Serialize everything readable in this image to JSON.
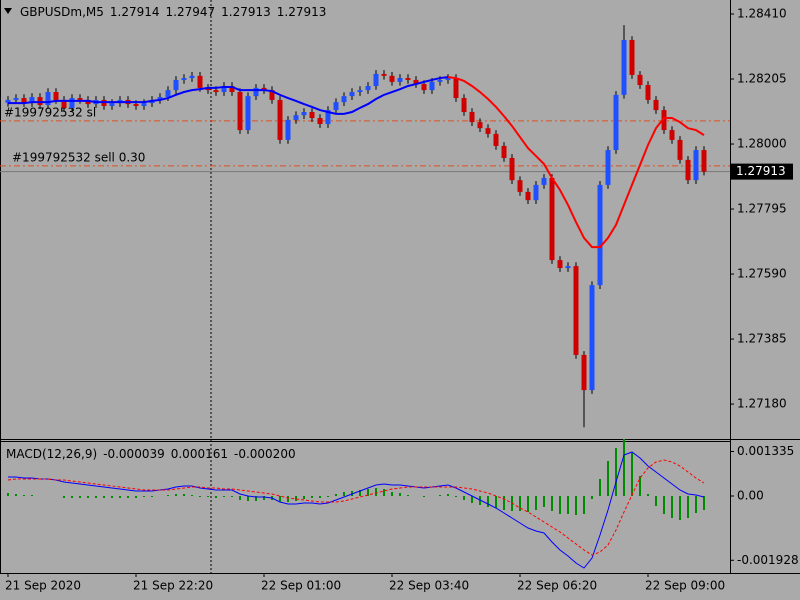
{
  "chart_data": [
    {
      "type": "candlestick",
      "title": "GBPUSDm,M5",
      "header_values": [
        1.27914,
        1.27947,
        1.27913,
        1.27913
      ],
      "categories": [
        "21 Sep 2020",
        null,
        null,
        null,
        null,
        null,
        null,
        null,
        null,
        null,
        null,
        null,
        null,
        null,
        null,
        null,
        "21 Sep 22:20",
        null,
        null,
        null,
        null,
        null,
        null,
        null,
        null,
        null,
        null,
        null,
        null,
        null,
        null,
        null,
        "22 Sep 01:00",
        null,
        null,
        null,
        null,
        null,
        null,
        null,
        null,
        null,
        null,
        null,
        null,
        null,
        null,
        null,
        "22 Sep 03:40",
        null,
        null,
        null,
        null,
        null,
        null,
        null,
        null,
        null,
        null,
        null,
        null,
        null,
        null,
        null,
        "22 Sep 06:20",
        null,
        null,
        null,
        null,
        null,
        null,
        null,
        null,
        null,
        null,
        null,
        null,
        null,
        null,
        null,
        "22 Sep 09:00",
        null,
        null,
        null,
        null,
        null,
        null,
        null
      ],
      "open": [
        1.2813,
        1.28139,
        1.28145,
        1.28129,
        1.28148,
        1.28123,
        1.28164,
        1.28139,
        1.28114,
        1.28145,
        1.28139,
        1.28126,
        1.28139,
        1.2812,
        1.28129,
        1.28139,
        1.28126,
        1.2812,
        1.28129,
        1.28139,
        1.28148,
        1.2817,
        1.28202,
        1.28208,
        1.28215,
        1.28177,
        1.2817,
        1.28164,
        1.28183,
        1.28164,
        1.28044,
        1.28151,
        1.28177,
        1.2817,
        1.28139,
        1.28013,
        1.28076,
        1.28091,
        1.28101,
        1.28082,
        1.28063,
        1.28107,
        1.28132,
        1.28151,
        1.28164,
        1.2817,
        1.28183,
        1.28221,
        1.28215,
        1.28196,
        1.28208,
        1.28202,
        1.28189,
        1.2817,
        1.28196,
        1.28202,
        1.28208,
        1.28145,
        1.28101,
        1.28069,
        1.2805,
        1.28032,
        1.27994,
        1.27956,
        1.27886,
        1.27849,
        1.27823,
        1.27871,
        1.27893,
        1.27634,
        1.27609,
        1.27615,
        1.27335,
        1.27224,
        1.27555,
        1.27871,
        1.27981,
        1.28155,
        1.28328,
        1.28218,
        1.28186,
        1.28139,
        1.28107,
        1.28044,
        1.28013,
        1.2795,
        1.27886,
        1.27981
      ],
      "high": [
        1.28151,
        1.28157,
        1.28157,
        1.2816,
        1.2816,
        1.28176,
        1.28176,
        1.28151,
        1.28157,
        1.28157,
        1.28151,
        1.28151,
        1.28151,
        1.28141,
        1.28151,
        1.28151,
        1.28138,
        1.28141,
        1.28151,
        1.2816,
        1.28182,
        1.28214,
        1.2822,
        1.28227,
        1.28227,
        1.28189,
        1.28182,
        1.28195,
        1.28195,
        1.28176,
        1.28163,
        1.28189,
        1.28189,
        1.28182,
        1.28151,
        1.28088,
        1.28103,
        1.28113,
        1.28113,
        1.28094,
        1.28119,
        1.28144,
        1.28163,
        1.28176,
        1.28182,
        1.28195,
        1.28233,
        1.28233,
        1.28227,
        1.2822,
        1.2822,
        1.28214,
        1.28201,
        1.28208,
        1.28214,
        1.2822,
        1.2822,
        1.28157,
        1.28113,
        1.28081,
        1.28062,
        1.28044,
        1.28006,
        1.27968,
        1.27898,
        1.27861,
        1.27883,
        1.27905,
        1.27905,
        1.27646,
        1.27627,
        1.27627,
        1.27347,
        1.27567,
        1.27883,
        1.27993,
        1.28167,
        1.28375,
        1.2834,
        1.2823,
        1.28198,
        1.28151,
        1.28119,
        1.28056,
        1.28025,
        1.27962,
        1.27993,
        1.27993
      ],
      "low": [
        1.28118,
        1.28127,
        1.28117,
        1.28117,
        1.28111,
        1.28111,
        1.28127,
        1.28102,
        1.28102,
        1.28127,
        1.28114,
        1.28114,
        1.28108,
        1.28108,
        1.28117,
        1.28114,
        1.28108,
        1.28108,
        1.28117,
        1.28127,
        1.28136,
        1.28158,
        1.2819,
        1.28196,
        1.28165,
        1.28158,
        1.28152,
        1.28152,
        1.28152,
        1.28032,
        1.28032,
        1.28139,
        1.28158,
        1.28127,
        1.28001,
        1.28001,
        1.28064,
        1.28079,
        1.2807,
        1.28051,
        1.28051,
        1.28095,
        1.2812,
        1.28139,
        1.28152,
        1.28158,
        1.28171,
        1.28203,
        1.28184,
        1.28184,
        1.2819,
        1.28177,
        1.28158,
        1.28158,
        1.28184,
        1.2819,
        1.28133,
        1.28089,
        1.28057,
        1.28038,
        1.2802,
        1.27982,
        1.27944,
        1.27874,
        1.27837,
        1.27811,
        1.27811,
        1.27859,
        1.27622,
        1.27597,
        1.27597,
        1.27323,
        1.27107,
        1.27212,
        1.27543,
        1.27859,
        1.27969,
        1.28143,
        1.28206,
        1.28174,
        1.28127,
        1.28095,
        1.28032,
        1.28001,
        1.27938,
        1.27874,
        1.27874,
        1.27901
      ],
      "close": [
        1.28139,
        1.28145,
        1.28129,
        1.28148,
        1.28123,
        1.28164,
        1.28139,
        1.28114,
        1.28145,
        1.28139,
        1.28126,
        1.28139,
        1.2812,
        1.28129,
        1.28139,
        1.28126,
        1.2812,
        1.28129,
        1.28139,
        1.28148,
        1.2817,
        1.28202,
        1.28208,
        1.28215,
        1.28177,
        1.2817,
        1.28164,
        1.28183,
        1.28164,
        1.28044,
        1.28151,
        1.28177,
        1.2817,
        1.28139,
        1.28013,
        1.28076,
        1.28091,
        1.28101,
        1.28082,
        1.28063,
        1.28107,
        1.28132,
        1.28151,
        1.28164,
        1.2817,
        1.28183,
        1.28221,
        1.28215,
        1.28196,
        1.28208,
        1.28202,
        1.28189,
        1.2817,
        1.28196,
        1.28202,
        1.28208,
        1.28145,
        1.28101,
        1.28069,
        1.2805,
        1.28032,
        1.27994,
        1.27956,
        1.27886,
        1.27849,
        1.27823,
        1.27871,
        1.27893,
        1.27634,
        1.27609,
        1.27615,
        1.27335,
        1.27224,
        1.27555,
        1.27871,
        1.27981,
        1.28155,
        1.28328,
        1.28218,
        1.28186,
        1.28139,
        1.28107,
        1.28044,
        1.28013,
        1.2795,
        1.27886,
        1.27981,
        1.27913
      ],
      "up_color": "#1f4fff",
      "down_color": "#d00000",
      "ma": {
        "up_color": "#0000ff",
        "down_color": "#ff0000",
        "values": [
          1.28129,
          1.28129,
          1.28129,
          1.28132,
          1.28132,
          1.28132,
          1.28136,
          1.28136,
          1.28136,
          1.28136,
          1.28136,
          1.28132,
          1.28132,
          1.28132,
          1.28132,
          1.28132,
          1.28132,
          1.28132,
          1.28136,
          1.28139,
          1.28145,
          1.28155,
          1.28164,
          1.2817,
          1.28173,
          1.28177,
          1.28177,
          1.2818,
          1.2818,
          1.2817,
          1.2817,
          1.2817,
          1.2817,
          1.28167,
          1.28155,
          1.28145,
          1.28136,
          1.28126,
          1.28117,
          1.28107,
          1.28101,
          1.28095,
          1.28095,
          1.28101,
          1.28114,
          1.28126,
          1.28142,
          1.28155,
          1.28164,
          1.28173,
          1.28183,
          1.28189,
          1.28196,
          1.28202,
          1.28208,
          1.28211,
          1.28208,
          1.28199,
          1.28183,
          1.28164,
          1.28142,
          1.28117,
          1.28088,
          1.28057,
          1.28022,
          1.27987,
          1.27962,
          1.27937,
          1.27893,
          1.27855,
          1.27808,
          1.27754,
          1.27704,
          1.27675,
          1.27675,
          1.27704,
          1.27745,
          1.27808,
          1.27871,
          1.27934,
          1.27997,
          1.2805,
          1.28082,
          1.28082,
          1.28069,
          1.2805,
          1.28044,
          1.28028
        ]
      },
      "levels": [
        {
          "label": "#199792532 sl",
          "value": 1.28073,
          "color": "#e05020"
        },
        {
          "label": "#199792532 sell 0.30",
          "value": 1.27931,
          "color": "#e05020"
        }
      ],
      "last_price": 1.27913,
      "ylim": [
        1.27073,
        1.28451
      ],
      "yticks": [
        {
          "value": 1.2841,
          "label": "1.28410"
        },
        1.28205,
        {
          "value": 1.28,
          "label": "1.28000"
        },
        1.27795,
        {
          "value": 1.2759,
          "label": "1.27590"
        },
        1.27385,
        {
          "value": 1.2718,
          "label": "1.27180"
        }
      ]
    },
    {
      "type": "macd",
      "title": "MACD(12,26,9)",
      "header_values": [
        -3.9e-05,
        0.000161,
        {
          "value": -0.0002,
          "label": "-0.000200"
        }
      ],
      "series": [
        {
          "style": "histogram",
          "color": "#008c00",
          "values": [
            9e-05,
            6e-05,
            3e-05,
            3e-05,
            0,
            0,
            0,
            -6e-05,
            -6e-05,
            -6e-05,
            -6e-05,
            -6e-05,
            -6e-05,
            -6e-05,
            -6e-05,
            -6e-05,
            -6e-05,
            -3e-05,
            -3e-05,
            0,
            3e-05,
            6e-05,
            6e-05,
            3e-05,
            -3e-05,
            -3e-05,
            -6e-05,
            -3e-05,
            -3e-05,
            -0.00012,
            -0.00015,
            -0.00015,
            -0.00012,
            -0.00012,
            -0.00018,
            -0.00018,
            -0.00015,
            -9e-05,
            -6e-05,
            -6e-05,
            -3e-05,
            6e-05,
            0.00012,
            0.00015,
            0.00018,
            0.00021,
            0.00024,
            0.00021,
            0.00012,
            9e-05,
            3e-05,
            0,
            -3e-05,
            0,
            3e-05,
            6e-05,
            -3e-05,
            -0.00012,
            -0.00021,
            -0.00027,
            -0.00033,
            -0.00036,
            -0.00042,
            -0.00045,
            -0.00045,
            -0.00048,
            -0.00042,
            -0.00033,
            -0.00045,
            -0.00054,
            -0.00054,
            -0.00057,
            -0.00054,
            -9e-05,
            0.00051,
            0.00105,
            0.00144,
            0.00171,
            0.00129,
            0.0006,
            6e-05,
            -0.0003,
            -0.00054,
            -0.00066,
            -0.00072,
            -0.00066,
            -0.00051,
            -0.00042
          ]
        },
        {
          "style": "solid",
          "color": "#0000ff",
          "values": [
            0.00057,
            0.00057,
            0.00054,
            0.00054,
            0.00051,
            0.00051,
            0.00048,
            0.00042,
            0.00039,
            0.00036,
            0.00033,
            0.0003,
            0.00027,
            0.00024,
            0.00021,
            0.00018,
            0.00015,
            0.00015,
            0.00015,
            0.00018,
            0.00021,
            0.00027,
            0.0003,
            0.0003,
            0.00024,
            0.00021,
            0.00018,
            0.00018,
            0.00018,
            6e-05,
            0,
            -3e-05,
            -3e-05,
            -6e-05,
            -0.00018,
            -0.00024,
            -0.00024,
            -0.00021,
            -0.00021,
            -0.00024,
            -0.00021,
            -0.00012,
            -3e-05,
            6e-05,
            0.00015,
            0.00024,
            0.00033,
            0.00036,
            0.00033,
            0.00033,
            0.0003,
            0.00027,
            0.00024,
            0.00027,
            0.0003,
            0.00033,
            0.00024,
            0.00012,
            0,
            -0.00012,
            -0.00024,
            -0.00036,
            -0.00051,
            -0.00066,
            -0.00081,
            -0.00096,
            -0.00105,
            -0.00111,
            -0.00138,
            -0.00162,
            -0.0018,
            -0.00201,
            -0.00216,
            -0.00186,
            -0.00117,
            -0.00042,
            0.00042,
            0.00123,
            0.00132,
            0.00114,
            0.0009,
            0.00072,
            0.00054,
            0.00036,
            0.00018,
            6e-05,
            3e-05,
            -3e-05
          ]
        },
        {
          "style": "dashed",
          "color": "#ff0000",
          "values": [
            0.00048,
            0.00051,
            0.00051,
            0.00051,
            0.00051,
            0.00051,
            0.00048,
            0.00048,
            0.00045,
            0.00042,
            0.00039,
            0.00036,
            0.00033,
            0.0003,
            0.00027,
            0.00024,
            0.00021,
            0.00018,
            0.00018,
            0.00018,
            0.00018,
            0.00021,
            0.00024,
            0.00027,
            0.00027,
            0.00024,
            0.00024,
            0.00021,
            0.00021,
            0.00018,
            0.00015,
            0.00012,
            9e-05,
            6e-05,
            0,
            -6e-05,
            -9e-05,
            -0.00012,
            -0.00015,
            -0.00018,
            -0.00018,
            -0.00018,
            -0.00015,
            -9e-05,
            -3e-05,
            3e-05,
            9e-05,
            0.00015,
            0.00021,
            0.00024,
            0.00027,
            0.00027,
            0.00027,
            0.00027,
            0.00027,
            0.00027,
            0.00027,
            0.00024,
            0.00021,
            0.00015,
            9e-05,
            0,
            -9e-05,
            -0.00021,
            -0.00036,
            -0.00048,
            -0.00063,
            -0.00078,
            -0.00093,
            -0.00108,
            -0.00126,
            -0.00144,
            -0.00162,
            -0.00177,
            -0.00168,
            -0.00147,
            -0.00102,
            -0.00048,
            3e-05,
            0.00054,
            0.00084,
            0.00102,
            0.00108,
            0.00102,
            0.0009,
            0.00072,
            0.00054,
            0.00039
          ]
        }
      ],
      "ylim": [
        -0.00228,
        0.00165
      ],
      "yticks": [
        0.001335,
        {
          "value": 0,
          "label": "0.00"
        },
        -0.001928
      ]
    }
  ]
}
